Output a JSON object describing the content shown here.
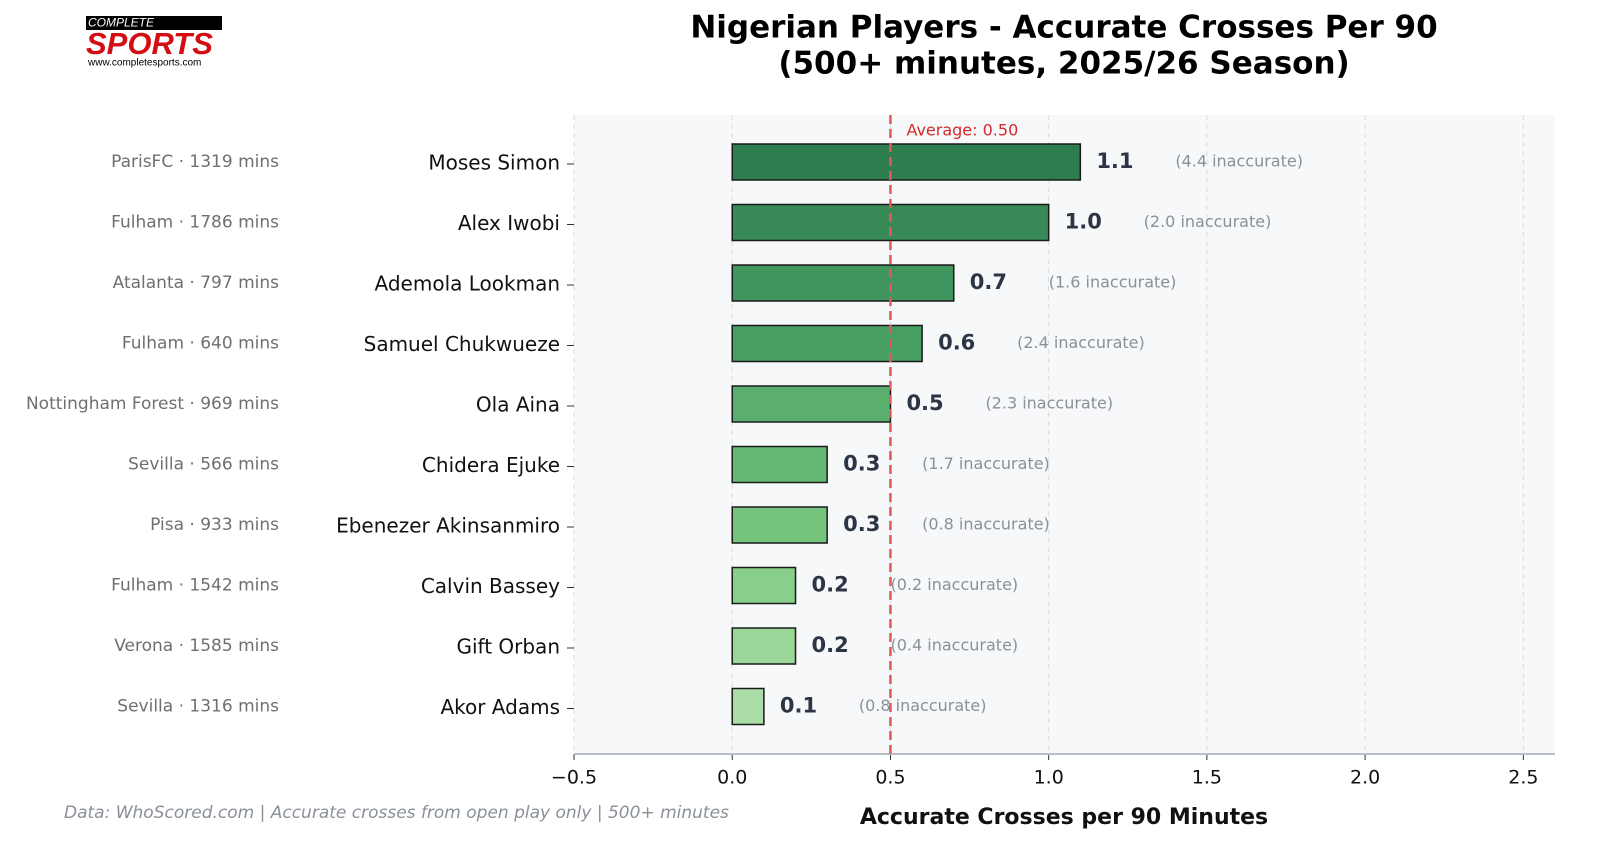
{
  "logo": {
    "top": "COMPLETE",
    "name": "SPORTS",
    "url": "www.completesports.com"
  },
  "chart_data": {
    "type": "barh",
    "title": "Nigerian Players - Accurate Crosses Per 90",
    "subtitle": "(500+ minutes, 2025/26 Season)",
    "xlabel": "Accurate Crosses per 90 Minutes",
    "note": "Data: WhoScored.com | Accurate crosses from open play only | 500+ minutes",
    "categories": [
      "Moses Simon",
      "Alex Iwobi",
      "Ademola Lookman",
      "Samuel Chukwueze",
      "Ola Aina",
      "Chidera Ejuke",
      "Ebenezer Akinsanmiro",
      "Calvin Bassey",
      "Gift Orban",
      "Akor Adams"
    ],
    "clubs": [
      "ParisFC · 1319 mins",
      "Fulham · 1786 mins",
      "Atalanta · 797 mins",
      "Fulham · 640 mins",
      "Nottingham Forest · 969 mins",
      "Sevilla · 566 mins",
      "Pisa · 933 mins",
      "Fulham · 1542 mins",
      "Verona · 1585 mins",
      "Sevilla · 1316 mins"
    ],
    "values": [
      1.1,
      1.0,
      0.7,
      0.6,
      0.5,
      0.3,
      0.3,
      0.2,
      0.2,
      0.1
    ],
    "value_labels": [
      "1.1",
      "1.0",
      "0.7",
      "0.6",
      "0.5",
      "0.3",
      "0.3",
      "0.2",
      "0.2",
      "0.1"
    ],
    "inaccurate_labels": [
      "(4.4 inaccurate)",
      "(2.0 inaccurate)",
      "(1.6 inaccurate)",
      "(2.4 inaccurate)",
      "(2.3 inaccurate)",
      "(1.7 inaccurate)",
      "(0.8 inaccurate)",
      "(0.2 inaccurate)",
      "(0.4 inaccurate)",
      "(0.8 inaccurate)"
    ],
    "colors": [
      "#2e7d4e",
      "#378a56",
      "#3f955d",
      "#479f64",
      "#5aae6e",
      "#66b972",
      "#74c47c",
      "#88cf8a",
      "#9ad798",
      "#abdea6"
    ],
    "average": {
      "value": 0.5,
      "label": "Average: 0.50"
    },
    "average_color": "#e05a5a",
    "xlim": [
      -0.5,
      2.6
    ],
    "xticks": [
      {
        "value": -0.5,
        "label": "−0.5"
      },
      {
        "value": 0,
        "label": "0.0"
      },
      0.5,
      {
        "value": 1,
        "label": "1.0"
      },
      1.5,
      {
        "value": 2,
        "label": "2.0"
      },
      2.5
    ],
    "grid": true
  }
}
